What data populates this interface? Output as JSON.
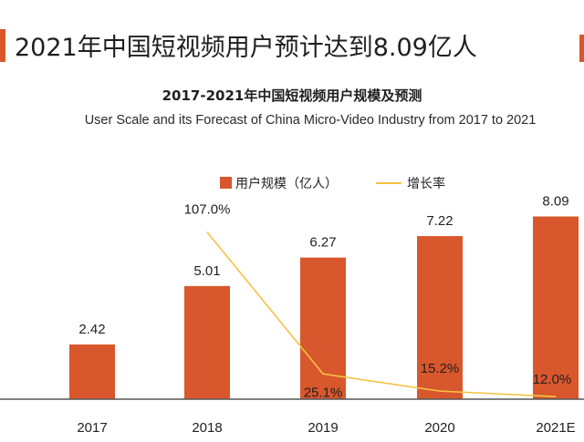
{
  "headline": "2021年中国短视频用户预计达到8.09亿人",
  "colors": {
    "accent": "#d9572c",
    "bar": "#d9572c",
    "line": "#f5c242",
    "axis": "#555555"
  },
  "chart_data": {
    "type": "bar",
    "title": "2017-2021年中国短视频用户规模及预测",
    "subtitle": "User Scale and its Forecast of China Micro-Video Industry from 2017 to 2021",
    "categories": [
      "2017",
      "2018",
      "2019",
      "2020",
      "2021E"
    ],
    "series": [
      {
        "name": "用户规模（亿人）",
        "type": "bar",
        "values": [
          2.42,
          5.01,
          6.27,
          7.22,
          8.09
        ],
        "labels": [
          "2.42",
          "5.01",
          "6.27",
          "7.22",
          "8.09"
        ]
      },
      {
        "name": "增长率",
        "type": "line",
        "values": [
          null,
          107.0,
          25.1,
          15.2,
          12.0
        ],
        "labels": [
          "",
          "107.0%",
          "25.1%",
          "15.2%",
          "12.0%"
        ]
      }
    ],
    "legend": [
      "用户规模（亿人）",
      "增长率"
    ],
    "ylim": [
      0,
      9.2
    ],
    "rate_ylim": [
      0,
      120
    ],
    "grid": false
  }
}
